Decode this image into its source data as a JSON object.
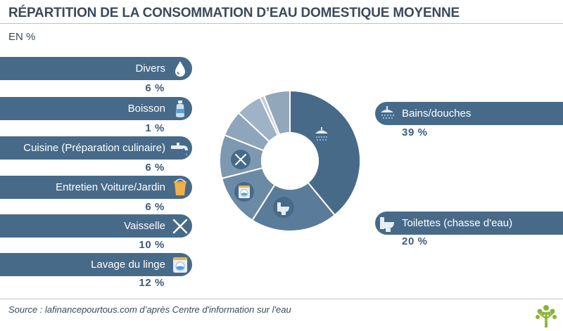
{
  "title": "RÉPARTITION DE LA CONSOMMATION D’EAU DOMESTIQUE MOYENNE",
  "subtitle": "EN %",
  "source": "Source : lafinancepourtous.com d’après Centre d'information sur l'eau",
  "colors": {
    "bar": "#476a89",
    "text_dark": "#3f5c78",
    "slices": [
      "#476a89",
      "#5a7c9a",
      "#6b8aa6",
      "#7e98b1",
      "#8ea5bb",
      "#a0b3c6",
      "#c0ccd8",
      "#93a7bb"
    ],
    "logo": "#8bb33b"
  },
  "categories_left": [
    {
      "label": "Divers",
      "pct": "6 %",
      "icon": "water-drop-icon"
    },
    {
      "label": "Boisson",
      "pct": "1 %",
      "icon": "water-bottle-icon"
    },
    {
      "label": "Cuisine (Préparation culinaire)",
      "pct": "6 %",
      "icon": "faucet-icon"
    },
    {
      "label": "Entretien Voiture/Jardin",
      "pct": "6 %",
      "icon": "bucket-icon"
    },
    {
      "label": "Vaisselle",
      "pct": "10 %",
      "icon": "fork-knife-icon"
    },
    {
      "label": "Lavage du linge",
      "pct": "12 %",
      "icon": "washing-machine-icon"
    }
  ],
  "categories_right": [
    {
      "label": "Bains/douches",
      "pct": "39 %",
      "icon": "shower-icon"
    },
    {
      "label": "Toilettes (chasse d'eau)",
      "pct": "20 %",
      "icon": "toilet-icon"
    }
  ],
  "chart_data": {
    "type": "pie",
    "title": "RÉPARTITION DE LA CONSOMMATION D’EAU DOMESTIQUE MOYENNE",
    "subtitle": "EN %",
    "categories": [
      "Bains/douches",
      "Toilettes (chasse d'eau)",
      "Lavage du linge",
      "Vaisselle",
      "Entretien Voiture/Jardin",
      "Cuisine (Préparation culinaire)",
      "Boisson",
      "Divers"
    ],
    "values": [
      39,
      20,
      12,
      10,
      6,
      6,
      1,
      6
    ],
    "donut": true
  }
}
